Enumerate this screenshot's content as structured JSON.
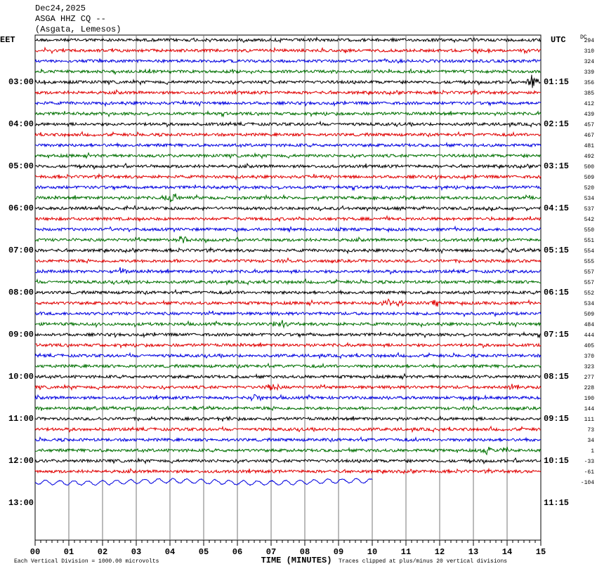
{
  "header": {
    "date": "Dec24,2025",
    "station": "ASGA HHZ CQ --",
    "location": "(Asgata, Lemesos)"
  },
  "left_zone": "EET",
  "right_zone": "UTC",
  "dc_label": "DC",
  "left_times": [
    "03:00",
    "04:00",
    "05:00",
    "06:00",
    "07:00",
    "08:00",
    "09:00",
    "10:00",
    "11:00",
    "12:00",
    "13:00"
  ],
  "right_times": [
    "01:15",
    "02:15",
    "03:15",
    "04:15",
    "05:15",
    "06:15",
    "07:15",
    "08:15",
    "09:15",
    "10:15",
    "11:15"
  ],
  "dc_offsets": [
    294,
    310,
    324,
    339,
    356,
    385,
    412,
    439,
    457,
    467,
    481,
    492,
    500,
    509,
    520,
    534,
    537,
    542,
    550,
    551,
    554,
    555,
    557,
    557,
    552,
    534,
    509,
    484,
    444,
    405,
    370,
    323,
    277,
    228,
    190,
    144,
    111,
    73,
    34,
    1,
    -33,
    -61,
    -104
  ],
  "x_ticks": [
    "00",
    "01",
    "02",
    "03",
    "04",
    "05",
    "06",
    "07",
    "08",
    "09",
    "10",
    "11",
    "12",
    "13",
    "14",
    "15"
  ],
  "x_label": "TIME (MINUTES)",
  "scale_note": "Each Vertical Division = 1000.00 microvolts",
  "clip_note": "Traces clipped at plus/minus 20 vertical divisions"
}
